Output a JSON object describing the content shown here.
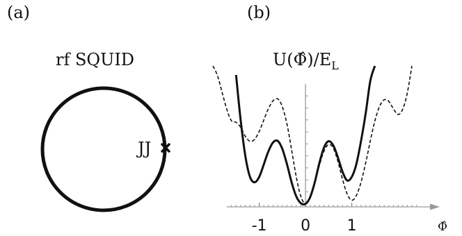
{
  "panel_a": {
    "label": "(a)",
    "title": "rf SQUID",
    "junction_label": "JJ"
  },
  "panel_b": {
    "label": "(b)",
    "title_main": "U(Φ̂)/E",
    "title_sub": "L",
    "x_axis_symbol": "Φ̂",
    "x_tick_labels": [
      "-1",
      "0",
      "1"
    ]
  },
  "chart_data": {
    "type": "line",
    "title": "U(Φ̂)/E_L",
    "xlabel": "Φ̂",
    "ylabel": "",
    "x_ticks": [
      -1,
      0,
      1
    ],
    "xlim": [
      -1.7,
      2.6
    ],
    "ylim": [
      -0.1,
      4.6
    ],
    "grid": false,
    "series": [
      {
        "style": "solid",
        "x": [
          -1.5,
          -1.4,
          -1.3,
          -1.2,
          -1.1,
          -1.0,
          -0.9,
          -0.8,
          -0.7,
          -0.6,
          -0.5,
          -0.4,
          -0.3,
          -0.2,
          -0.1,
          0.0,
          0.1,
          0.2,
          0.3,
          0.4,
          0.5,
          0.6,
          0.7,
          0.8,
          0.9,
          1.0,
          1.1,
          1.2,
          1.3,
          1.4,
          1.5
        ],
        "y": [
          4.3,
          2.77,
          1.6,
          0.9,
          0.72,
          0.9,
          1.32,
          1.76,
          2.05,
          2.1,
          1.83,
          1.32,
          0.72,
          0.25,
          0.02,
          0.0,
          0.22,
          0.72,
          1.36,
          1.88,
          2.09,
          1.95,
          1.55,
          1.07,
          0.78,
          0.9,
          1.33,
          2.1,
          3.01,
          4.1,
          4.6
        ]
      },
      {
        "style": "dashed",
        "x": [
          -2.0,
          -1.9,
          -1.8,
          -1.7,
          -1.6,
          -1.5,
          -1.4,
          -1.3,
          -1.2,
          -1.1,
          -1.0,
          -0.9,
          -0.8,
          -0.7,
          -0.6,
          -0.5,
          -0.4,
          -0.3,
          -0.2,
          -0.1,
          0.0,
          0.1,
          0.2,
          0.3,
          0.4,
          0.5,
          0.6,
          0.7,
          0.8,
          0.9,
          1.0,
          1.1,
          1.2,
          1.3,
          1.4,
          1.5,
          1.6,
          1.7,
          1.8,
          1.9,
          2.0,
          2.1,
          2.2,
          2.3
        ],
        "y": [
          4.6,
          4.27,
          3.71,
          3.15,
          2.77,
          2.72,
          2.55,
          2.25,
          2.09,
          2.15,
          2.42,
          2.8,
          3.18,
          3.44,
          3.5,
          3.24,
          2.66,
          1.8,
          0.9,
          0.25,
          0.0,
          0.21,
          0.7,
          1.28,
          1.76,
          1.98,
          1.86,
          1.42,
          0.82,
          0.33,
          0.12,
          0.28,
          0.72,
          1.36,
          2.1,
          2.77,
          3.25,
          3.47,
          3.42,
          3.17,
          2.98,
          3.15,
          3.7,
          4.6
        ]
      }
    ]
  }
}
